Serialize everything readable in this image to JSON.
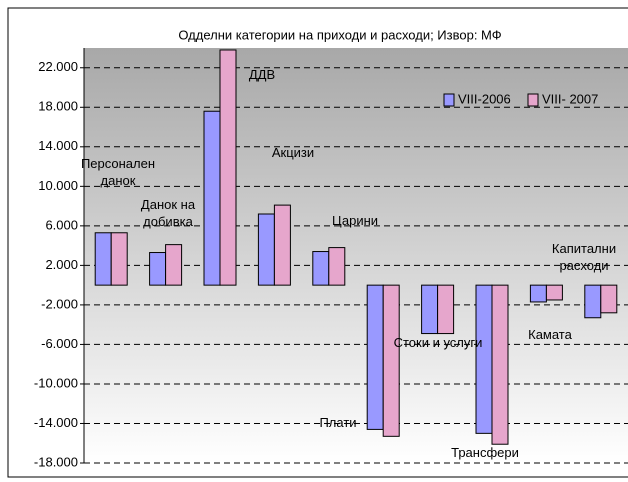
{
  "chart_data": {
    "type": "bar",
    "title": "Одделни категории на приходи и расходи; Извор: МФ",
    "categories": [
      "Персонален данок",
      "Данок на добивка",
      "ДДВ",
      "Акцизи",
      "Царини",
      "Плати",
      "Стоки и услуги",
      "Трансфери",
      "Камата",
      "Капитални расходи"
    ],
    "series": [
      {
        "name": "VIII-2006",
        "color": "#9999ff",
        "values": [
          5300,
          3300,
          17600,
          7200,
          3400,
          -14600,
          -4900,
          -15000,
          -1700,
          -3300
        ]
      },
      {
        "name": "VIII- 2007",
        "color": "#e6a6cc",
        "values": [
          5300,
          4100,
          23800,
          8100,
          3800,
          -15300,
          -4900,
          -16100,
          -1500,
          -2800
        ]
      }
    ],
    "ylim": [
      -18000,
      24000
    ],
    "yticks": [
      {
        "value": 22000,
        "label": "22.000"
      },
      {
        "value": 18000,
        "label": "18.000"
      },
      {
        "value": 14000,
        "label": "14.000"
      },
      {
        "value": 10000,
        "label": "10.000"
      },
      {
        "value": 6000,
        "label": "6.000"
      },
      {
        "value": 2000,
        "label": "2.000"
      },
      {
        "value": -2000,
        "label": "-2.000"
      },
      {
        "value": -6000,
        "label": "-6.000"
      },
      {
        "value": -10000,
        "label": "-10.000"
      },
      {
        "value": -14000,
        "label": "-14.000"
      },
      {
        "value": -18000,
        "label": "-18.000"
      }
    ],
    "grid": true,
    "legend": "top-right"
  }
}
